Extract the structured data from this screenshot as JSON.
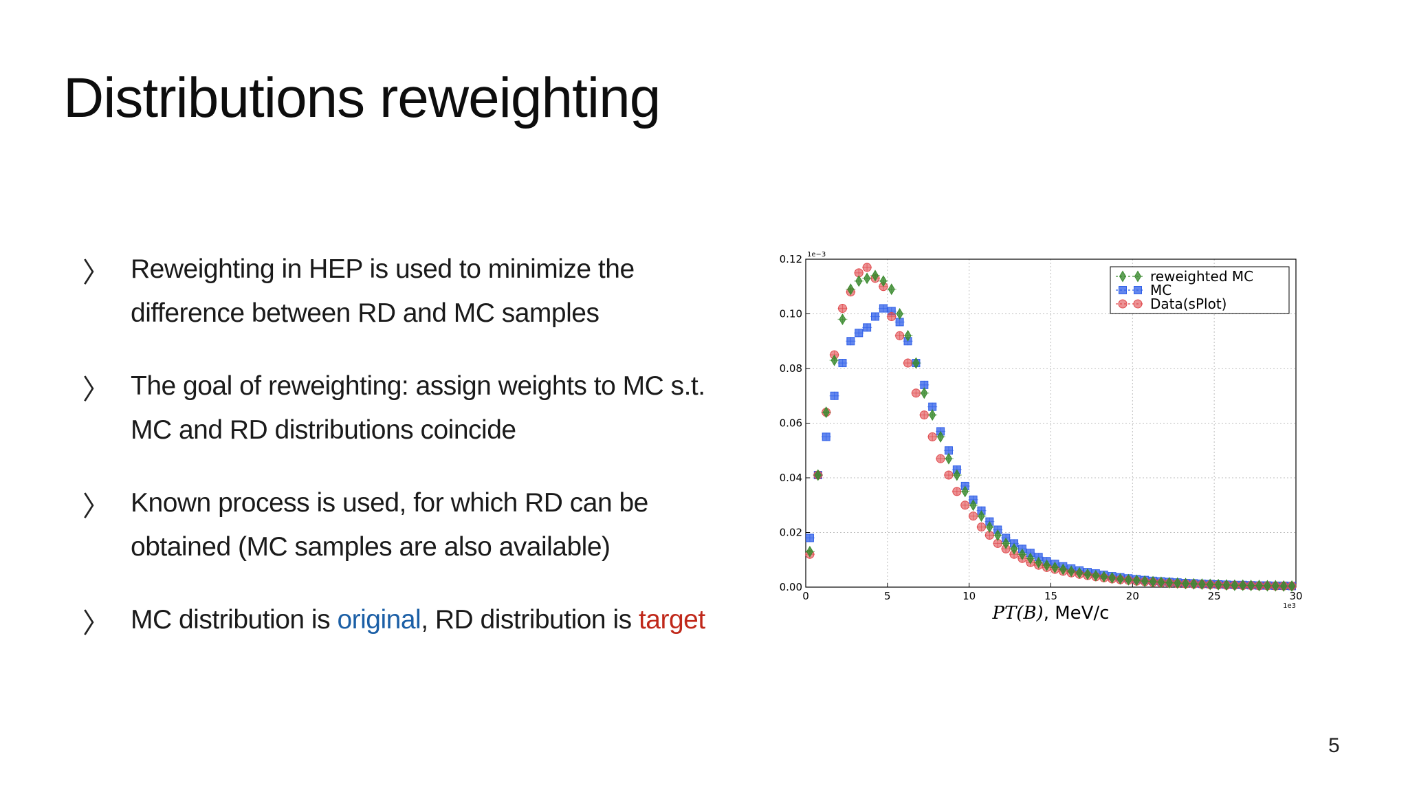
{
  "slide": {
    "title": "Distributions reweighting",
    "page_number": "5",
    "marker": "〉",
    "bullets": [
      {
        "line1": "Reweighting in HEP is used to minimize the",
        "line2": "difference between RD and MC samples"
      },
      {
        "line1": "The goal of reweighting: assign weights to MC s.t.",
        "line2": "MC and RD distributions coincide"
      },
      {
        "line1": "Known process is used, for which RD can be",
        "line2": "obtained (MC samples are also available)"
      },
      {
        "prefix": "MC distribution is ",
        "original": "original",
        "middle": ", RD distribution is ",
        "target": "target"
      }
    ],
    "colors": {
      "original": "#1b5fa6",
      "target": "#c0281a"
    }
  },
  "chart_data": {
    "type": "scatter",
    "xlabel_math": "PT(B)",
    "xlabel_unit": ", MeV/c",
    "x_multiplier": "1e3",
    "y_multiplier": "1e−3",
    "xlim": [
      0,
      30
    ],
    "ylim": [
      0.0,
      0.12
    ],
    "xticks": [
      "0",
      "5",
      "10",
      "15",
      "20",
      "25",
      "30"
    ],
    "yticks": [
      "0.00",
      "0.02",
      "0.04",
      "0.06",
      "0.08",
      "0.10",
      "0.12"
    ],
    "grid": true,
    "legend_position": "top-right",
    "x": [
      0.25,
      0.75,
      1.25,
      1.75,
      2.25,
      2.75,
      3.25,
      3.75,
      4.25,
      4.75,
      5.25,
      5.75,
      6.25,
      6.75,
      7.25,
      7.75,
      8.25,
      8.75,
      9.25,
      9.75,
      10.25,
      10.75,
      11.25,
      11.75,
      12.25,
      12.75,
      13.25,
      13.75,
      14.25,
      14.75,
      15.25,
      15.75,
      16.25,
      16.75,
      17.25,
      17.75,
      18.25,
      18.75,
      19.25,
      19.75,
      20.25,
      20.75,
      21.25,
      21.75,
      22.25,
      22.75,
      23.25,
      23.75,
      24.25,
      24.75,
      25.25,
      25.75,
      26.25,
      26.75,
      27.25,
      27.75,
      28.25,
      28.75,
      29.25,
      29.75
    ],
    "series": [
      {
        "name": "reweighted MC",
        "color": "#3a8a2e",
        "marker": "diamond",
        "values": [
          0.013,
          0.041,
          0.064,
          0.083,
          0.098,
          0.109,
          0.112,
          0.113,
          0.114,
          0.112,
          0.109,
          0.1,
          0.092,
          0.082,
          0.071,
          0.063,
          0.055,
          0.047,
          0.041,
          0.035,
          0.03,
          0.026,
          0.022,
          0.019,
          0.016,
          0.014,
          0.012,
          0.0105,
          0.009,
          0.008,
          0.0072,
          0.0065,
          0.0058,
          0.0052,
          0.0047,
          0.0042,
          0.0038,
          0.0034,
          0.003,
          0.0027,
          0.0025,
          0.0022,
          0.002,
          0.0018,
          0.0016,
          0.0015,
          0.0013,
          0.0012,
          0.0011,
          0.001,
          0.0009,
          0.0008,
          0.0007,
          0.0007,
          0.0006,
          0.0006,
          0.0005,
          0.0005,
          0.0004,
          0.0004
        ]
      },
      {
        "name": "MC",
        "color": "#2f5fe8",
        "marker": "square",
        "values": [
          0.018,
          0.041,
          0.055,
          0.07,
          0.082,
          0.09,
          0.093,
          0.095,
          0.099,
          0.102,
          0.101,
          0.097,
          0.09,
          0.082,
          0.074,
          0.066,
          0.057,
          0.05,
          0.043,
          0.037,
          0.032,
          0.028,
          0.024,
          0.021,
          0.018,
          0.016,
          0.014,
          0.0125,
          0.011,
          0.0095,
          0.0085,
          0.0076,
          0.0068,
          0.0061,
          0.0055,
          0.005,
          0.0045,
          0.004,
          0.0036,
          0.0032,
          0.0029,
          0.0026,
          0.0023,
          0.0021,
          0.0019,
          0.0017,
          0.0015,
          0.0014,
          0.0012,
          0.0011,
          0.001,
          0.0009,
          0.0008,
          0.0008,
          0.0007,
          0.0006,
          0.0006,
          0.0005,
          0.0005,
          0.0004
        ]
      },
      {
        "name": "Data(sPlot)",
        "color": "#e0494c",
        "marker": "circle",
        "values": [
          0.012,
          0.041,
          0.064,
          0.085,
          0.102,
          0.108,
          0.115,
          0.117,
          0.113,
          0.11,
          0.099,
          0.092,
          0.082,
          0.071,
          0.063,
          0.055,
          0.047,
          0.041,
          0.035,
          0.03,
          0.026,
          0.022,
          0.019,
          0.016,
          0.014,
          0.012,
          0.0105,
          0.009,
          0.008,
          0.0072,
          0.0065,
          0.0058,
          0.0052,
          0.0047,
          0.0042,
          0.0038,
          0.0034,
          0.003,
          0.0027,
          0.0025,
          0.0022,
          0.002,
          0.0018,
          0.0016,
          0.0015,
          0.0013,
          0.0012,
          0.0011,
          0.001,
          0.0009,
          0.0008,
          0.0007,
          0.0007,
          0.0006,
          0.0006,
          0.0005,
          0.0005,
          0.0004,
          0.0004,
          0.0004
        ]
      }
    ]
  }
}
